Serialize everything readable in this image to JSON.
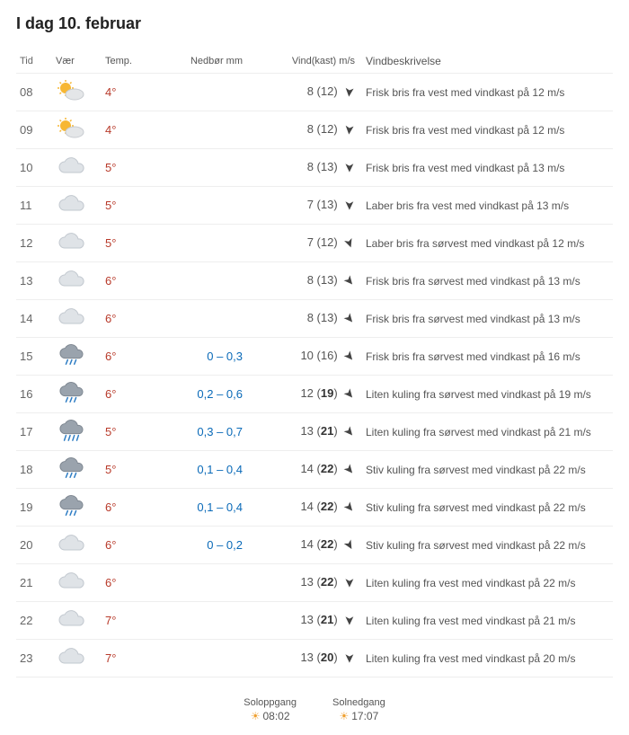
{
  "title": "I dag 10. februar",
  "columns": {
    "tid": "Tid",
    "vaer": "Vær",
    "temp": "Temp.",
    "nedbor": "Nedbør mm",
    "vind": "Vind(kast) m/s",
    "besk": "Vindbeskrivelse"
  },
  "rows": [
    {
      "tid": "08",
      "icon": "sun-cloud",
      "temp": "4°",
      "nedbor": "",
      "wind": "8",
      "gust": "12",
      "gust_bold": false,
      "dir": 95,
      "besk": "Frisk bris fra vest med vindkast på 12 m/s"
    },
    {
      "tid": "09",
      "icon": "sun-cloud",
      "temp": "4°",
      "nedbor": "",
      "wind": "8",
      "gust": "12",
      "gust_bold": false,
      "dir": 95,
      "besk": "Frisk bris fra vest med vindkast på 12 m/s"
    },
    {
      "tid": "10",
      "icon": "cloud",
      "temp": "5°",
      "nedbor": "",
      "wind": "8",
      "gust": "13",
      "gust_bold": false,
      "dir": 90,
      "besk": "Frisk bris fra vest med vindkast på 13 m/s"
    },
    {
      "tid": "11",
      "icon": "cloud",
      "temp": "5°",
      "nedbor": "",
      "wind": "7",
      "gust": "13",
      "gust_bold": false,
      "dir": 90,
      "besk": "Laber bris fra vest med vindkast på 13 m/s"
    },
    {
      "tid": "12",
      "icon": "cloud",
      "temp": "5°",
      "nedbor": "",
      "wind": "7",
      "gust": "12",
      "gust_bold": false,
      "dir": 70,
      "besk": "Laber bris fra sørvest med vindkast på 12 m/s"
    },
    {
      "tid": "13",
      "icon": "cloud",
      "temp": "6°",
      "nedbor": "",
      "wind": "8",
      "gust": "13",
      "gust_bold": false,
      "dir": 50,
      "besk": "Frisk bris fra sørvest med vindkast på 13 m/s"
    },
    {
      "tid": "14",
      "icon": "cloud",
      "temp": "6°",
      "nedbor": "",
      "wind": "8",
      "gust": "13",
      "gust_bold": false,
      "dir": 50,
      "besk": "Frisk bris fra sørvest med vindkast på 13 m/s"
    },
    {
      "tid": "15",
      "icon": "rain",
      "temp": "6°",
      "nedbor": "0 – 0,3",
      "wind": "10",
      "gust": "16",
      "gust_bold": false,
      "dir": 50,
      "besk": "Frisk bris fra sørvest med vindkast på 16 m/s"
    },
    {
      "tid": "16",
      "icon": "rain",
      "temp": "6°",
      "nedbor": "0,2 – 0,6",
      "wind": "12",
      "gust": "19",
      "gust_bold": true,
      "dir": 50,
      "besk": "Liten kuling fra sørvest med vindkast på 19 m/s"
    },
    {
      "tid": "17",
      "icon": "rain-heavy",
      "temp": "5°",
      "nedbor": "0,3 – 0,7",
      "wind": "13",
      "gust": "21",
      "gust_bold": true,
      "dir": 50,
      "besk": "Liten kuling fra sørvest med vindkast på 21 m/s"
    },
    {
      "tid": "18",
      "icon": "rain",
      "temp": "5°",
      "nedbor": "0,1 – 0,4",
      "wind": "14",
      "gust": "22",
      "gust_bold": true,
      "dir": 50,
      "besk": "Stiv kuling fra sørvest med vindkast på 22 m/s"
    },
    {
      "tid": "19",
      "icon": "rain",
      "temp": "6°",
      "nedbor": "0,1 – 0,4",
      "wind": "14",
      "gust": "22",
      "gust_bold": true,
      "dir": 50,
      "besk": "Stiv kuling fra sørvest med vindkast på 22 m/s"
    },
    {
      "tid": "20",
      "icon": "cloud",
      "temp": "6°",
      "nedbor": "0 – 0,2",
      "wind": "14",
      "gust": "22",
      "gust_bold": true,
      "dir": 60,
      "besk": "Stiv kuling fra sørvest med vindkast på 22 m/s"
    },
    {
      "tid": "21",
      "icon": "cloud",
      "temp": "6°",
      "nedbor": "",
      "wind": "13",
      "gust": "22",
      "gust_bold": true,
      "dir": 90,
      "besk": "Liten kuling fra vest med vindkast på 22 m/s"
    },
    {
      "tid": "22",
      "icon": "cloud",
      "temp": "7°",
      "nedbor": "",
      "wind": "13",
      "gust": "21",
      "gust_bold": true,
      "dir": 90,
      "besk": "Liten kuling fra vest med vindkast på 21 m/s"
    },
    {
      "tid": "23",
      "icon": "cloud",
      "temp": "7°",
      "nedbor": "",
      "wind": "13",
      "gust": "20",
      "gust_bold": true,
      "dir": 90,
      "besk": "Liten kuling fra vest med vindkast på 20 m/s"
    }
  ],
  "sun": {
    "rise_label": "Soloppgang",
    "rise_time": "08:02",
    "set_label": "Solnedgang",
    "set_time": "17:07"
  },
  "colors": {
    "temp": "#b83a2a",
    "precip": "#0a6ab8",
    "border": "#eeeeee"
  }
}
